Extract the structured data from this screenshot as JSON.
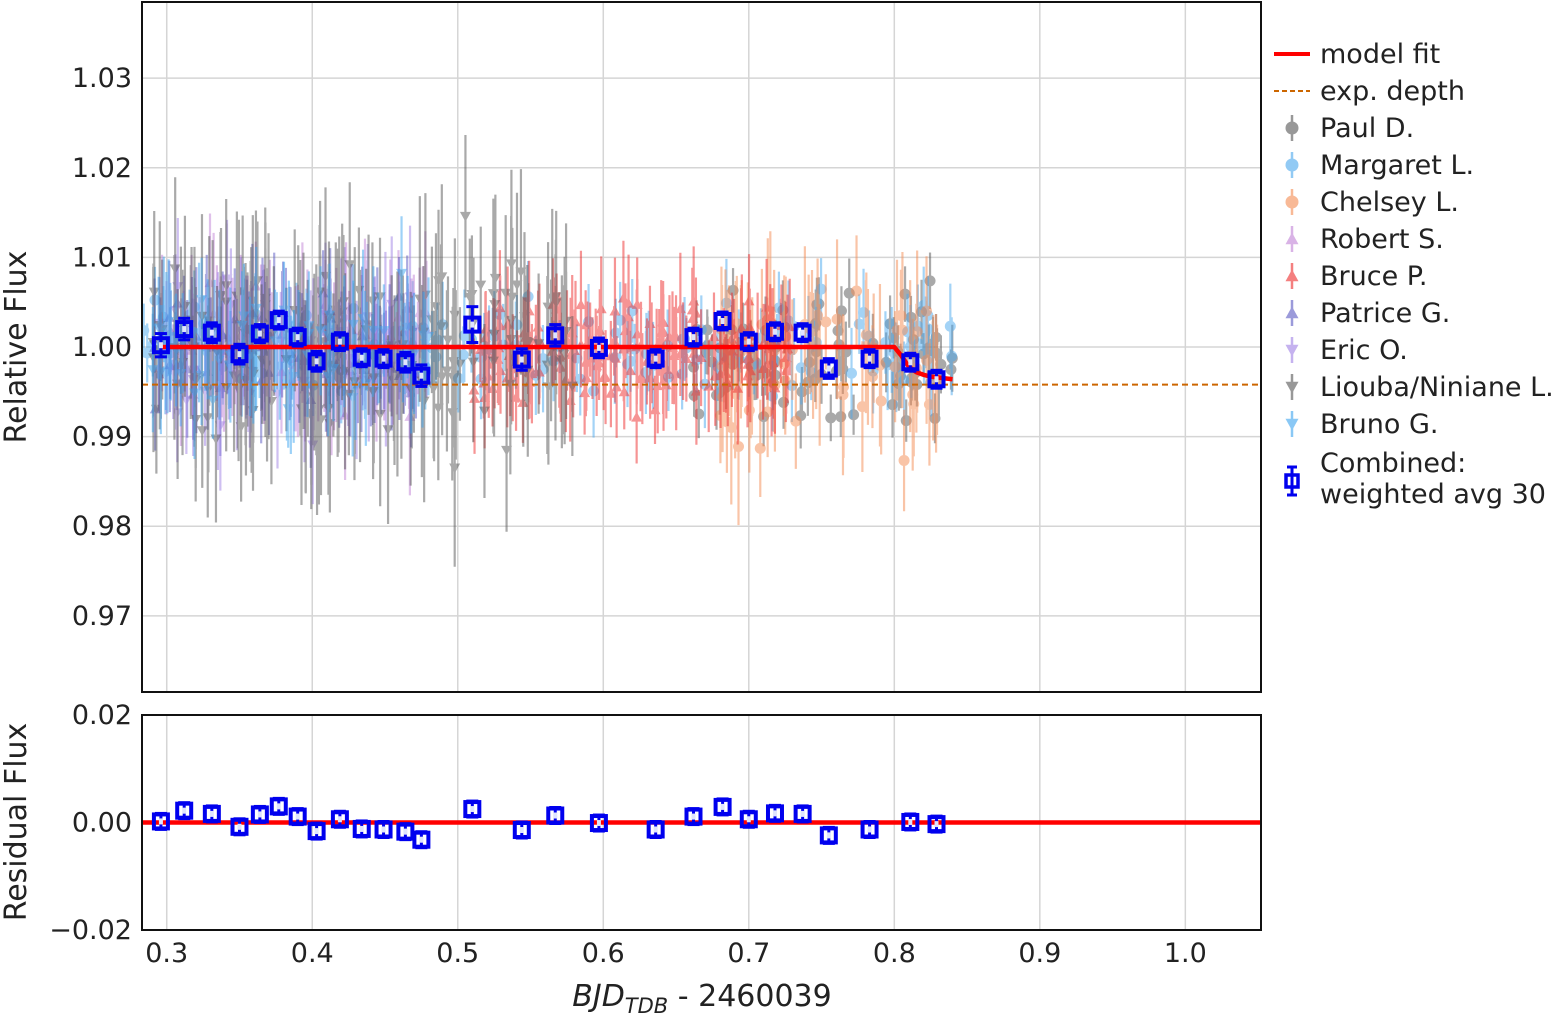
{
  "chart_data": [
    {
      "type": "scatter",
      "panel": "top",
      "title": "",
      "ylabel": "Relative Flux",
      "xlim": [
        0.283,
        1.052
      ],
      "ylim": [
        0.9615,
        1.0385
      ],
      "xticks": [
        0.3,
        0.4,
        0.5,
        0.6,
        0.7,
        0.8,
        0.9,
        1.0
      ],
      "yticks": [
        0.97,
        0.98,
        0.99,
        1.0,
        1.01,
        1.02,
        1.03
      ],
      "ytick_labels": [
        "0.97",
        "0.98",
        "0.99",
        "1.00",
        "1.01",
        "1.02",
        "1.03"
      ],
      "grid": true,
      "legend_position": "outside-right",
      "model_fit": {
        "label": "model fit",
        "color": "#ff0000",
        "x": [
          0.296,
          0.3,
          0.4,
          0.5,
          0.6,
          0.7,
          0.78,
          0.8,
          0.805,
          0.81,
          0.815,
          0.82,
          0.825,
          0.83,
          0.835,
          0.84
        ],
        "y": [
          1.0,
          1.0,
          1.0,
          1.0,
          1.0,
          1.0,
          1.0,
          1.0,
          0.999,
          0.9978,
          0.9972,
          0.9969,
          0.9967,
          0.9966,
          0.9965,
          0.9964
        ]
      },
      "expected_depth": {
        "label": "exp. depth",
        "color": "#cc6600",
        "y": 0.9958
      },
      "observers": [
        {
          "name": "Paul D.",
          "color": "#555555",
          "marker": "circle",
          "x_range": [
            0.66,
            0.84
          ],
          "mean": 0.9985,
          "scatter": 0.0045,
          "err": 0.003,
          "n": 90
        },
        {
          "name": "Margaret L.",
          "color": "#4aa8ee",
          "marker": "circle",
          "x_range": [
            0.28,
            0.84
          ],
          "mean": 0.9998,
          "scatter": 0.004,
          "err": 0.004,
          "n": 150
        },
        {
          "name": "Chelsey L.",
          "color": "#f58b52",
          "marker": "circle",
          "x_range": [
            0.68,
            0.83
          ],
          "mean": 0.999,
          "scatter": 0.006,
          "err": 0.007,
          "n": 70
        },
        {
          "name": "Robert S.",
          "color": "#c182d6",
          "marker": "triangle-up",
          "x_range": [
            0.29,
            0.48
          ],
          "mean": 1.0,
          "scatter": 0.004,
          "err": 0.007,
          "n": 70
        },
        {
          "name": "Bruce P.",
          "color": "#ee2b2b",
          "marker": "triangle-up",
          "x_range": [
            0.51,
            0.73
          ],
          "mean": 0.9998,
          "scatter": 0.004,
          "err": 0.005,
          "n": 170
        },
        {
          "name": "Patrice G.",
          "color": "#5a58c2",
          "marker": "triangle-up",
          "x_range": [
            0.29,
            0.48
          ],
          "mean": 0.9998,
          "scatter": 0.004,
          "err": 0.006,
          "n": 90
        },
        {
          "name": "Eric O.",
          "color": "#9f80e5",
          "marker": "triangle-down",
          "x_range": [
            0.29,
            0.47
          ],
          "mean": 0.9998,
          "scatter": 0.005,
          "err": 0.007,
          "n": 50
        },
        {
          "name": "Liouba/Niniane L.",
          "color": "#555555",
          "marker": "triangle-down",
          "x_range": [
            0.29,
            0.58
          ],
          "mean": 0.9995,
          "scatter": 0.007,
          "err": 0.009,
          "n": 190
        },
        {
          "name": "Bruno G.",
          "color": "#3da5f0",
          "marker": "triangle-down",
          "x_range": [
            0.29,
            0.48
          ],
          "mean": 0.9998,
          "scatter": 0.004,
          "err": 0.006,
          "n": 80
        }
      ],
      "combined": {
        "label_line1": "Combined:",
        "label_line2": "weighted avg 30",
        "color": "#0000ee",
        "points": [
          {
            "x": 0.296,
            "y": 1.0002,
            "err": 0.0013
          },
          {
            "x": 0.312,
            "y": 1.002,
            "err": 0.0012
          },
          {
            "x": 0.331,
            "y": 1.0016,
            "err": 0.0011
          },
          {
            "x": 0.35,
            "y": 0.9992,
            "err": 0.0011
          },
          {
            "x": 0.364,
            "y": 1.0015,
            "err": 0.001
          },
          {
            "x": 0.377,
            "y": 1.003,
            "err": 0.001
          },
          {
            "x": 0.39,
            "y": 1.0011,
            "err": 0.001
          },
          {
            "x": 0.403,
            "y": 0.9984,
            "err": 0.0011
          },
          {
            "x": 0.419,
            "y": 1.0006,
            "err": 0.001
          },
          {
            "x": 0.434,
            "y": 0.9988,
            "err": 0.001
          },
          {
            "x": 0.449,
            "y": 0.9987,
            "err": 0.001
          },
          {
            "x": 0.464,
            "y": 0.9983,
            "err": 0.0011
          },
          {
            "x": 0.475,
            "y": 0.9968,
            "err": 0.0012
          },
          {
            "x": 0.51,
            "y": 1.0025,
            "err": 0.002
          },
          {
            "x": 0.544,
            "y": 0.9986,
            "err": 0.0012
          },
          {
            "x": 0.567,
            "y": 1.0013,
            "err": 0.0012
          },
          {
            "x": 0.597,
            "y": 0.9999,
            "err": 0.0011
          },
          {
            "x": 0.636,
            "y": 0.9987,
            "err": 0.001
          },
          {
            "x": 0.662,
            "y": 1.0011,
            "err": 0.001
          },
          {
            "x": 0.682,
            "y": 1.0029,
            "err": 0.001
          },
          {
            "x": 0.7,
            "y": 1.0006,
            "err": 0.001
          },
          {
            "x": 0.718,
            "y": 1.0017,
            "err": 0.001
          },
          {
            "x": 0.737,
            "y": 1.0016,
            "err": 0.001
          },
          {
            "x": 0.755,
            "y": 0.9976,
            "err": 0.0011
          },
          {
            "x": 0.783,
            "y": 0.9987,
            "err": 0.001
          },
          {
            "x": 0.811,
            "y": 0.9983,
            "err": 0.001
          },
          {
            "x": 0.829,
            "y": 0.9964,
            "err": 0.001
          }
        ]
      },
      "legend": [
        "model fit",
        "exp. depth",
        "Paul D.",
        "Margaret L.",
        "Chelsey L.",
        "Robert S.",
        "Bruce P.",
        "Patrice G.",
        "Eric O.",
        "Liouba/Niniane L.",
        "Bruno G.",
        "Combined:",
        "weighted avg 30"
      ]
    },
    {
      "type": "scatter",
      "panel": "bottom",
      "ylabel": "Residual Flux",
      "xlabel_main": "BJD",
      "xlabel_sub": "TDB",
      "xlabel_rest": " - 2460039",
      "xlim": [
        0.283,
        1.052
      ],
      "ylim": [
        -0.02,
        0.02
      ],
      "xticks": [
        0.3,
        0.4,
        0.5,
        0.6,
        0.7,
        0.8,
        0.9,
        1.0
      ],
      "xtick_labels": [
        "0.3",
        "0.4",
        "0.5",
        "0.6",
        "0.7",
        "0.8",
        "0.9",
        "1.0"
      ],
      "yticks": [
        -0.02,
        0.0,
        0.02
      ],
      "ytick_labels": [
        "−0.02",
        "0.00",
        "0.02"
      ],
      "zero_line": 0.0,
      "residuals": [
        {
          "x": 0.296,
          "y": 0.0002
        },
        {
          "x": 0.312,
          "y": 0.0022
        },
        {
          "x": 0.331,
          "y": 0.0016
        },
        {
          "x": 0.35,
          "y": -0.0008
        },
        {
          "x": 0.364,
          "y": 0.0015
        },
        {
          "x": 0.377,
          "y": 0.003
        },
        {
          "x": 0.39,
          "y": 0.0011
        },
        {
          "x": 0.403,
          "y": -0.0016
        },
        {
          "x": 0.419,
          "y": 0.0006
        },
        {
          "x": 0.434,
          "y": -0.0012
        },
        {
          "x": 0.449,
          "y": -0.0013
        },
        {
          "x": 0.464,
          "y": -0.0017
        },
        {
          "x": 0.475,
          "y": -0.0032
        },
        {
          "x": 0.51,
          "y": 0.0025
        },
        {
          "x": 0.544,
          "y": -0.0014
        },
        {
          "x": 0.567,
          "y": 0.0013
        },
        {
          "x": 0.597,
          "y": -0.0001
        },
        {
          "x": 0.636,
          "y": -0.0013
        },
        {
          "x": 0.662,
          "y": 0.0011
        },
        {
          "x": 0.682,
          "y": 0.0029
        },
        {
          "x": 0.7,
          "y": 0.0006
        },
        {
          "x": 0.718,
          "y": 0.0017
        },
        {
          "x": 0.737,
          "y": 0.0016
        },
        {
          "x": 0.755,
          "y": -0.0024
        },
        {
          "x": 0.783,
          "y": -0.0013
        },
        {
          "x": 0.811,
          "y": 0.0001
        },
        {
          "x": 0.829,
          "y": -0.0003
        }
      ]
    }
  ]
}
